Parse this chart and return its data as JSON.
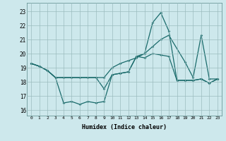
{
  "xlabel": "Humidex (Indice chaleur)",
  "bg_color": "#cde8ec",
  "grid_color": "#9bbcbf",
  "line_color": "#1a6b6b",
  "xlim": [
    -0.5,
    23.5
  ],
  "ylim": [
    15.6,
    23.6
  ],
  "yticks": [
    16,
    17,
    18,
    19,
    20,
    21,
    22,
    23
  ],
  "xticks": [
    0,
    1,
    2,
    3,
    4,
    5,
    6,
    7,
    8,
    9,
    10,
    11,
    12,
    13,
    14,
    15,
    16,
    17,
    18,
    19,
    20,
    21,
    22,
    23
  ],
  "line1_x": [
    0,
    1,
    2,
    3,
    4,
    5,
    6,
    7,
    8,
    9,
    10,
    11,
    12,
    13,
    14,
    15,
    16,
    17,
    18,
    19,
    20,
    21,
    22,
    23
  ],
  "line1_y": [
    19.3,
    19.1,
    18.8,
    18.3,
    16.5,
    16.6,
    16.4,
    16.6,
    16.5,
    16.6,
    18.5,
    18.6,
    18.7,
    19.8,
    19.7,
    20.0,
    19.9,
    19.8,
    18.1,
    18.1,
    18.1,
    18.2,
    17.9,
    18.2
  ],
  "line2_x": [
    0,
    1,
    2,
    3,
    4,
    5,
    6,
    7,
    8,
    9,
    10,
    11,
    12,
    13,
    14,
    15,
    16,
    17,
    18,
    19,
    20,
    21,
    22,
    23
  ],
  "line2_y": [
    19.3,
    19.1,
    18.8,
    18.3,
    18.3,
    18.3,
    18.3,
    18.3,
    18.3,
    17.5,
    18.5,
    18.6,
    18.7,
    19.8,
    20.0,
    22.2,
    22.9,
    21.6,
    18.1,
    18.1,
    18.1,
    18.2,
    17.9,
    18.2
  ],
  "line3_x": [
    0,
    1,
    2,
    3,
    9,
    10,
    11,
    12,
    13,
    14,
    15,
    16,
    17,
    19,
    20,
    21,
    22,
    23
  ],
  "line3_y": [
    19.3,
    19.1,
    18.8,
    18.3,
    18.3,
    19.0,
    19.3,
    19.5,
    19.7,
    20.0,
    20.5,
    21.0,
    21.3,
    19.4,
    18.3,
    21.3,
    18.2,
    18.2
  ]
}
